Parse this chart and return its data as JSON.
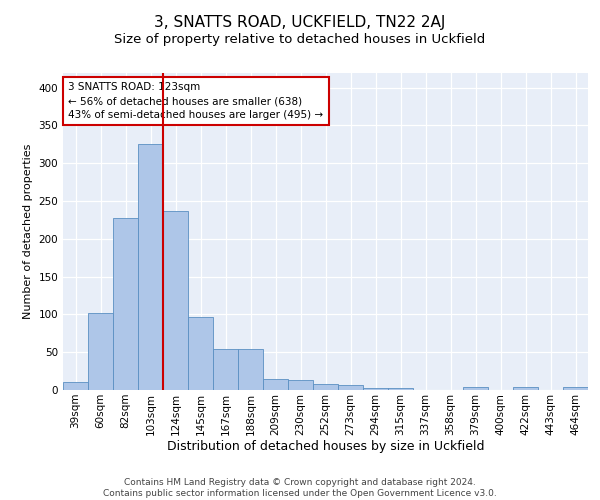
{
  "title": "3, SNATTS ROAD, UCKFIELD, TN22 2AJ",
  "subtitle": "Size of property relative to detached houses in Uckfield",
  "xlabel": "Distribution of detached houses by size in Uckfield",
  "ylabel": "Number of detached properties",
  "categories": [
    "39sqm",
    "60sqm",
    "82sqm",
    "103sqm",
    "124sqm",
    "145sqm",
    "167sqm",
    "188sqm",
    "209sqm",
    "230sqm",
    "252sqm",
    "273sqm",
    "294sqm",
    "315sqm",
    "337sqm",
    "358sqm",
    "379sqm",
    "400sqm",
    "422sqm",
    "443sqm",
    "464sqm"
  ],
  "values": [
    10,
    102,
    228,
    325,
    237,
    96,
    54,
    54,
    15,
    13,
    8,
    6,
    3,
    3,
    0,
    0,
    4,
    0,
    4,
    0,
    4
  ],
  "bar_color": "#aec6e8",
  "bar_edge_color": "#5a8fc2",
  "highlight_line_color": "#cc0000",
  "annotation_text": "3 SNATTS ROAD: 123sqm\n← 56% of detached houses are smaller (638)\n43% of semi-detached houses are larger (495) →",
  "annotation_box_color": "#ffffff",
  "annotation_box_edge": "#cc0000",
  "ylim": [
    0,
    420
  ],
  "background_color": "#e8eef8",
  "footer_text": "Contains HM Land Registry data © Crown copyright and database right 2024.\nContains public sector information licensed under the Open Government Licence v3.0.",
  "title_fontsize": 11,
  "subtitle_fontsize": 9.5,
  "xlabel_fontsize": 9,
  "ylabel_fontsize": 8,
  "tick_fontsize": 7.5,
  "annotation_fontsize": 7.5,
  "footer_fontsize": 6.5
}
